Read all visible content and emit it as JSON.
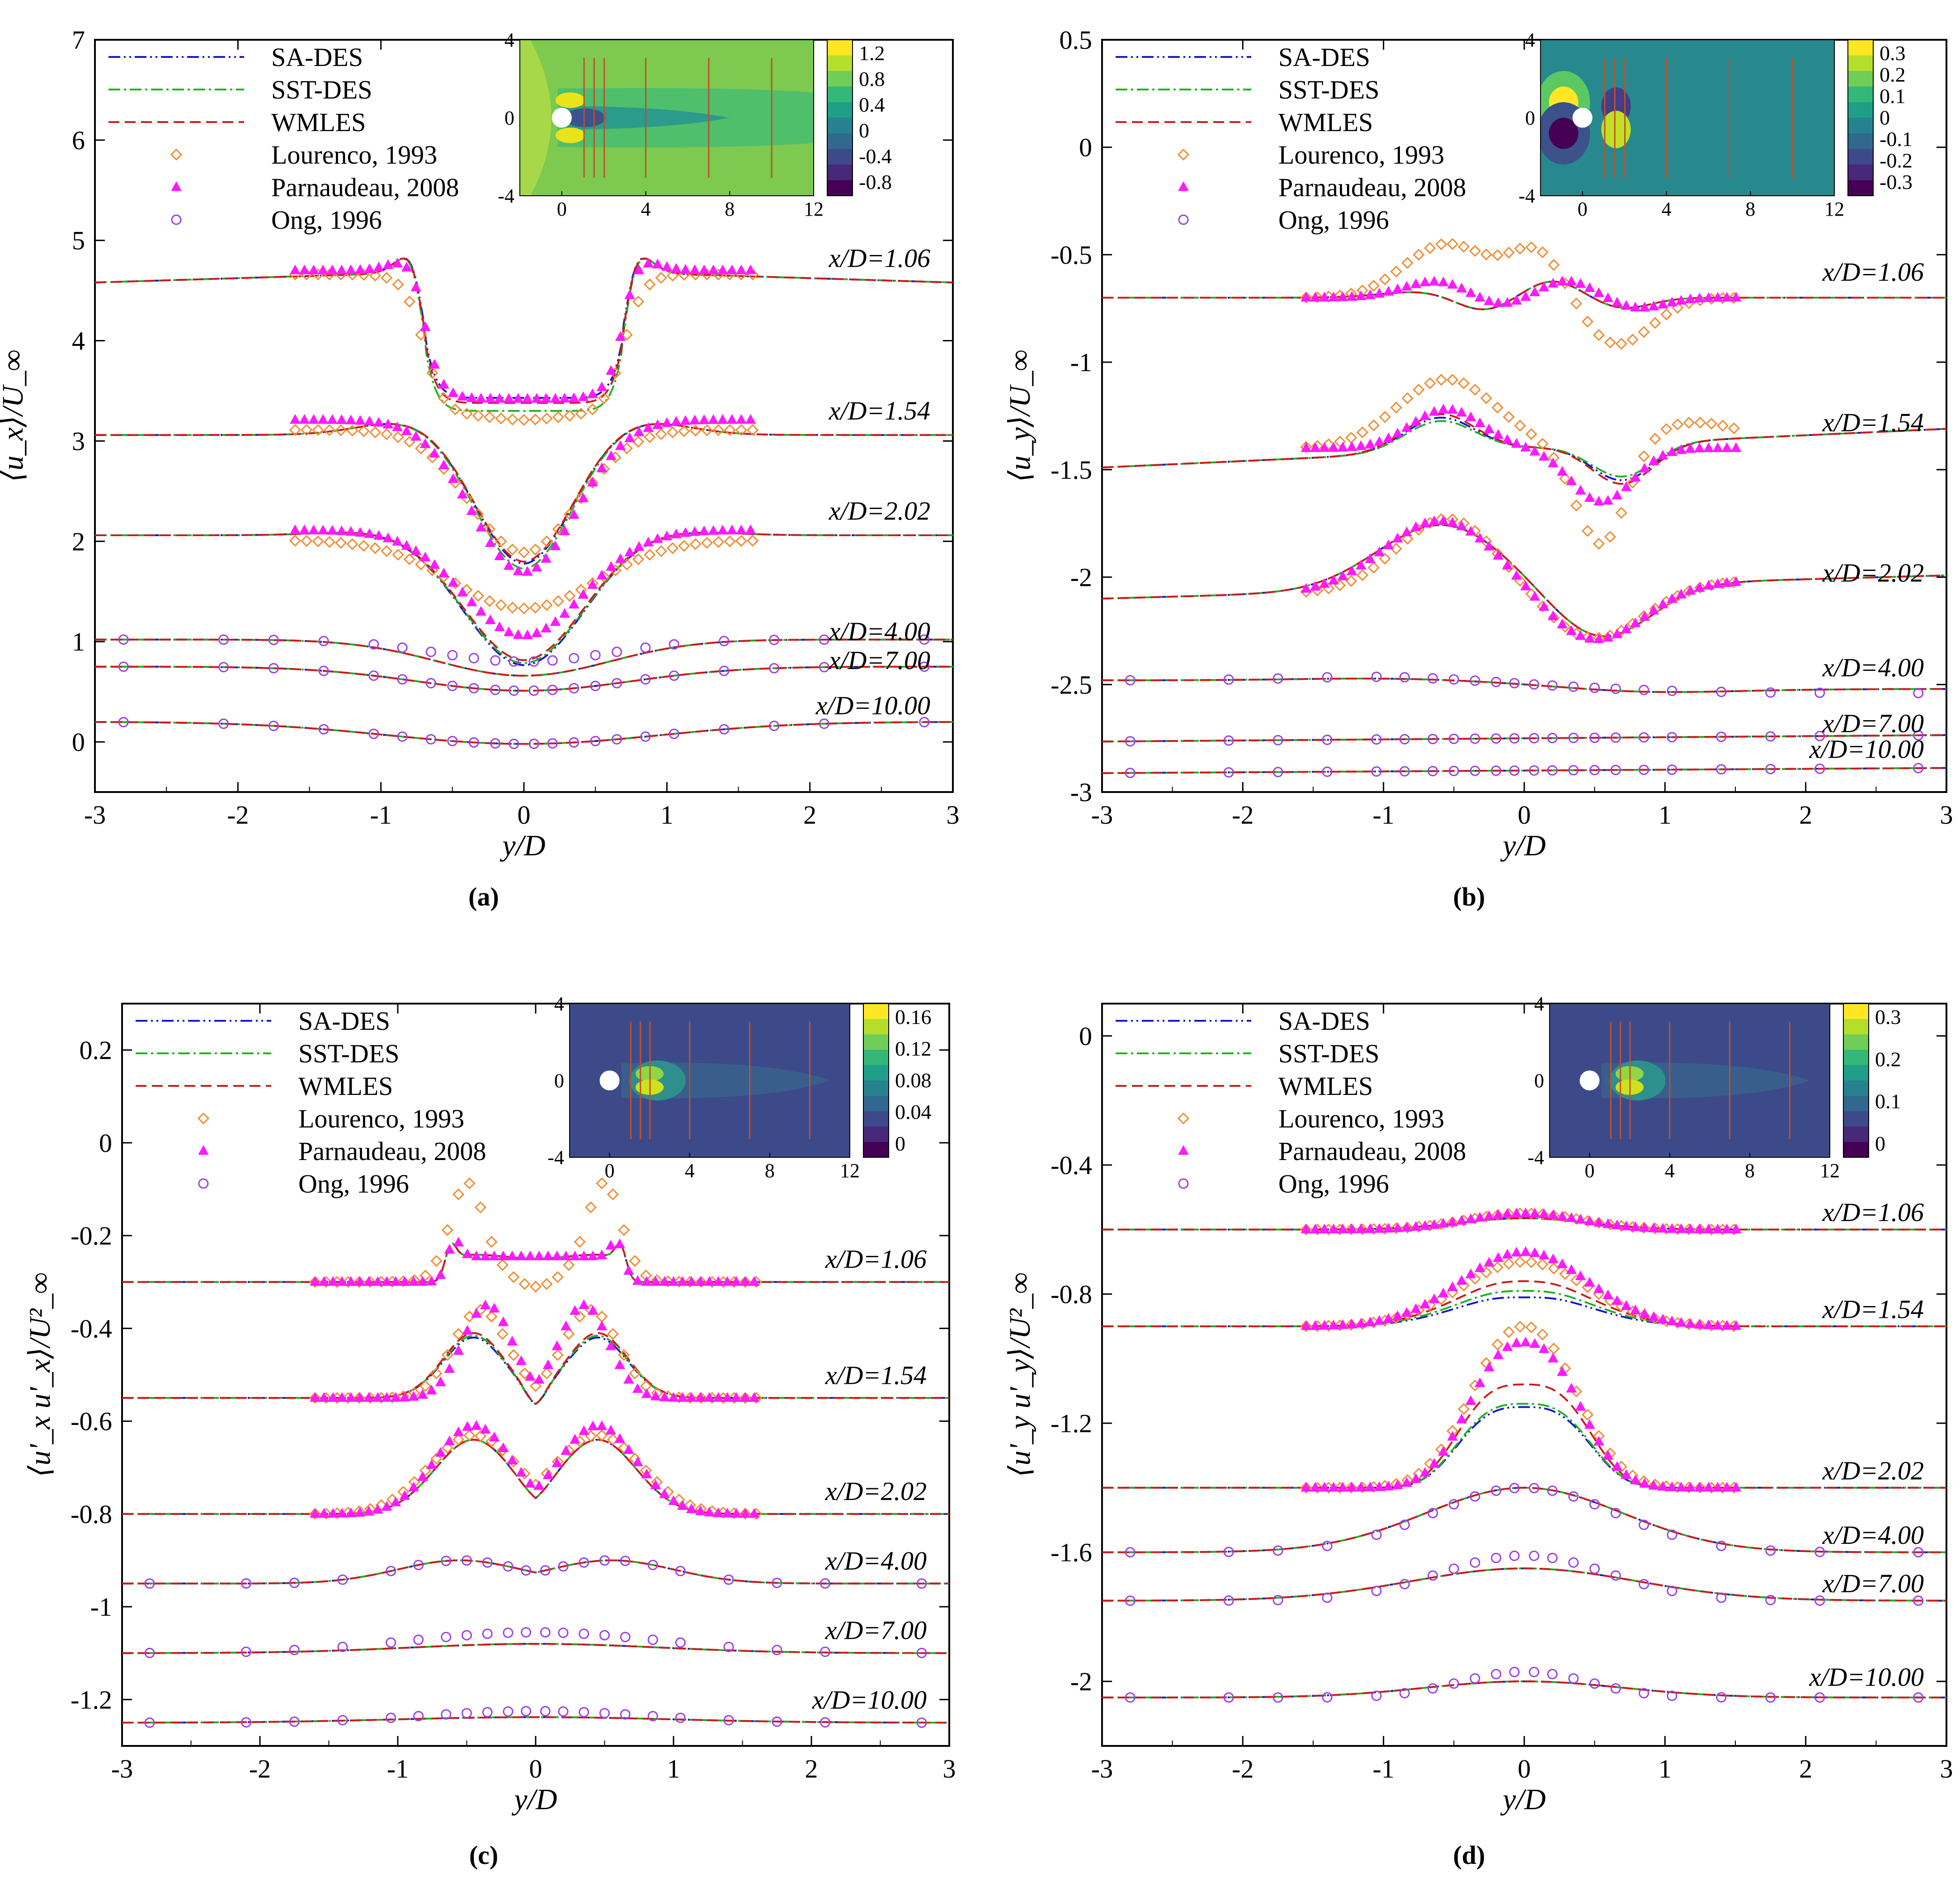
{
  "figure": {
    "captions": [
      "(a)",
      "(b)",
      "(c)",
      "(d)"
    ]
  },
  "styles": {
    "SA-DES": {
      "color": "#1414d2",
      "dash": "dashdotdot"
    },
    "SST-DES": {
      "color": "#1cb41c",
      "dash": "dashdot"
    },
    "WMLES": {
      "color": "#cc1a1a",
      "dash": "dash"
    },
    "Lourenco, 1993": {
      "color": "#f28a2e",
      "marker": "diamond"
    },
    "Parnaudeau, 2008": {
      "color": "#ff1aff",
      "marker": "triangle"
    },
    "Ong, 1996": {
      "color": "#9a3fe8",
      "marker": "circle"
    }
  },
  "chart_data": [
    {
      "id": "a",
      "type": "line",
      "caption": "(a)",
      "xlabel": "y/D",
      "ylabel": "⟨u_x⟩/U_∞",
      "xlim": [
        -3,
        3
      ],
      "ylim": [
        -0.5,
        7
      ],
      "xticks": [
        "-3",
        "-2",
        "-1",
        "0",
        "1",
        "2",
        "3"
      ],
      "yticks": [
        "0",
        "1",
        "2",
        "3",
        "4",
        "5",
        "6",
        "7"
      ],
      "legend": [
        "SA-DES",
        "SST-DES",
        "WMLES",
        "Lourenco, 1993",
        "Parnaudeau, 2008",
        "Ong, 1996"
      ],
      "stations": [
        {
          "label": "x/D=1.06",
          "base": 4.58,
          "ylab": 4.78
        },
        {
          "label": "x/D=1.54",
          "base": 3.06,
          "ylab": 3.26
        },
        {
          "label": "x/D=2.02",
          "base": 2.06,
          "ylab": 2.26
        },
        {
          "label": "x/D=4.00",
          "base": 1.02,
          "ylab": 1.06
        },
        {
          "label": "x/D=7.00",
          "base": 0.75,
          "ylab": 0.77
        },
        {
          "label": "x/D=10.00",
          "base": 0.2,
          "ylab": 0.32
        }
      ],
      "inset": {
        "xticks": [
          "0",
          "4",
          "8",
          "12"
        ],
        "yticks": [
          "4",
          "0",
          "-4"
        ],
        "colorbar": [
          "1.2",
          "0.8",
          "0.4",
          "0",
          "-0.4",
          "-0.8"
        ],
        "colormap": "velocity"
      }
    },
    {
      "id": "b",
      "type": "line",
      "caption": "(b)",
      "xlabel": "y/D",
      "ylabel": "⟨u_y⟩/U_∞",
      "xlim": [
        -3,
        3
      ],
      "ylim": [
        -3,
        0.5
      ],
      "xticks": [
        "-3",
        "-2",
        "-1",
        "0",
        "1",
        "2",
        "3"
      ],
      "yticks": [
        "0.5",
        "0",
        "-0.5",
        "-1",
        "-1.5",
        "-2",
        "-2.5",
        "-3"
      ],
      "legend": [
        "SA-DES",
        "SST-DES",
        "WMLES",
        "Lourenco, 1993",
        "Parnaudeau, 2008",
        "Ong, 1996"
      ],
      "stations": [
        {
          "label": "x/D=1.06",
          "base": -0.7,
          "ylab": -0.6
        },
        {
          "label": "x/D=1.54",
          "base": -1.4,
          "ylab": -1.3
        },
        {
          "label": "x/D=2.02",
          "base": -2.1,
          "ylab": -2.0
        },
        {
          "label": "x/D=4.00",
          "base": -2.48,
          "ylab": -2.44
        },
        {
          "label": "x/D=7.00",
          "base": -2.75,
          "ylab": -2.7
        },
        {
          "label": "x/D=10.00",
          "base": -2.9,
          "ylab": -2.82
        }
      ],
      "inset": {
        "xticks": [
          "0",
          "4",
          "8",
          "12"
        ],
        "yticks": [
          "4",
          "0",
          "-4"
        ],
        "colorbar": [
          "0.3",
          "0.2",
          "0.1",
          "0",
          "-0.1",
          "-0.2",
          "-0.3"
        ],
        "colormap": "diverging"
      }
    },
    {
      "id": "c",
      "type": "line",
      "caption": "(c)",
      "xlabel": "y/D",
      "ylabel": "⟨u'_x u'_x⟩/U²_∞",
      "xlim": [
        -3,
        3
      ],
      "ylim": [
        -1.3,
        0.3
      ],
      "xticks": [
        "-3",
        "-2",
        "-1",
        "0",
        "1",
        "2",
        "3"
      ],
      "yticks": [
        "0.2",
        "0",
        "-0.2",
        "-0.4",
        "-0.6",
        "-0.8",
        "-1",
        "-1.2"
      ],
      "legend": [
        "SA-DES",
        "SST-DES",
        "WMLES",
        "Lourenco, 1993",
        "Parnaudeau, 2008",
        "Ong, 1996"
      ],
      "stations": [
        {
          "label": "x/D=1.06",
          "base": -0.3,
          "ylab": -0.26
        },
        {
          "label": "x/D=1.54",
          "base": -0.55,
          "ylab": -0.51
        },
        {
          "label": "x/D=2.02",
          "base": -0.8,
          "ylab": -0.76
        },
        {
          "label": "x/D=4.00",
          "base": -0.95,
          "ylab": -0.91
        },
        {
          "label": "x/D=7.00",
          "base": -1.1,
          "ylab": -1.06
        },
        {
          "label": "x/D=10.00",
          "base": -1.25,
          "ylab": -1.21
        }
      ],
      "inset": {
        "xticks": [
          "0",
          "4",
          "8",
          "12"
        ],
        "yticks": [
          "4",
          "0",
          "-4"
        ],
        "colorbar": [
          "0.16",
          "0.12",
          "0.08",
          "0.04",
          "0"
        ],
        "colormap": "stress"
      }
    },
    {
      "id": "d",
      "type": "line",
      "caption": "(d)",
      "xlabel": "y/D",
      "ylabel": "⟨u'_y u'_y⟩/U²_∞",
      "xlim": [
        -3,
        3
      ],
      "ylim": [
        -2.2,
        0.1
      ],
      "xticks": [
        "-3",
        "-2",
        "-1",
        "0",
        "1",
        "2",
        "3"
      ],
      "yticks": [
        "0",
        "-0.4",
        "-0.8",
        "-1.2",
        "-1.6",
        "-2"
      ],
      "legend": [
        "SA-DES",
        "SST-DES",
        "WMLES",
        "Lourenco, 1993",
        "Parnaudeau, 2008",
        "Ong, 1996"
      ],
      "stations": [
        {
          "label": "x/D=1.06",
          "base": -0.6,
          "ylab": -0.56
        },
        {
          "label": "x/D=1.54",
          "base": -0.9,
          "ylab": -0.86
        },
        {
          "label": "x/D=2.02",
          "base": -1.4,
          "ylab": -1.36
        },
        {
          "label": "x/D=4.00",
          "base": -1.6,
          "ylab": -1.56
        },
        {
          "label": "x/D=7.00",
          "base": -1.75,
          "ylab": -1.71
        },
        {
          "label": "x/D=10.00",
          "base": -2.05,
          "ylab": -2.0
        }
      ],
      "inset": {
        "xticks": [
          "0",
          "4",
          "8",
          "12"
        ],
        "yticks": [
          "4",
          "0",
          "-4"
        ],
        "colorbar": [
          "0.3",
          "0.2",
          "0.1",
          "0"
        ],
        "colormap": "stress"
      }
    }
  ]
}
